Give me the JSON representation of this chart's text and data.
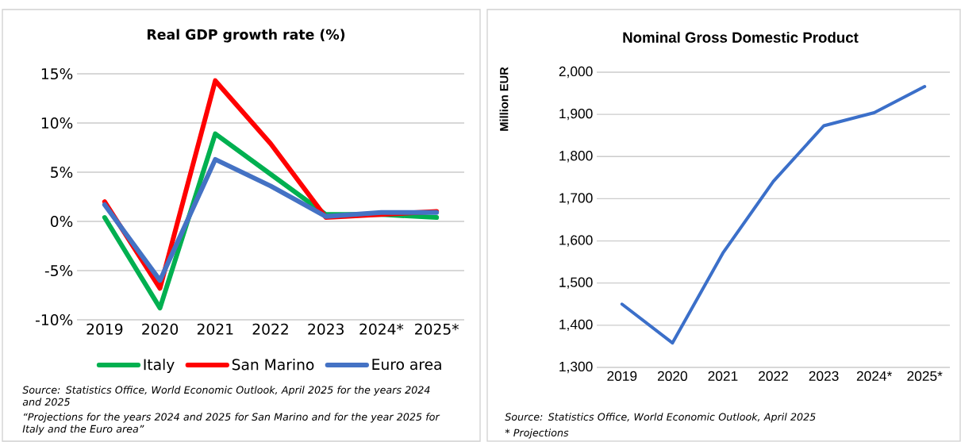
{
  "chart_data": [
    {
      "type": "line",
      "title": "Real GDP growth rate (%)",
      "categories": [
        "2019",
        "2020",
        "2021",
        "2022",
        "2023",
        "2024*",
        "2025*"
      ],
      "series": [
        {
          "name": "Italy",
          "color": "#00b050",
          "values": [
            0.4,
            -8.8,
            8.9,
            4.8,
            0.7,
            0.7,
            0.4
          ]
        },
        {
          "name": "San Marino",
          "color": "#ff0000",
          "values": [
            2.0,
            -6.8,
            14.3,
            7.9,
            0.4,
            0.7,
            1.0
          ]
        },
        {
          "name": "Euro area",
          "color": "#4472c4",
          "values": [
            1.7,
            -6.0,
            6.3,
            3.6,
            0.5,
            0.9,
            0.9
          ]
        }
      ],
      "ylim": [
        -10,
        15
      ],
      "yticks": [
        {
          "value": -10,
          "label": "-10%"
        },
        {
          "value": -5,
          "label": "-5%"
        },
        {
          "value": 0,
          "label": "0%"
        },
        {
          "value": 5,
          "label": "5%"
        },
        {
          "value": 10,
          "label": "10%"
        },
        {
          "value": 15,
          "label": "15%"
        }
      ],
      "grid": "y",
      "legend": "bottom",
      "annotations": [
        "Source: Statistics Office, World Economic Outlook, April 2025 for the years 2024 and 2025",
        "“Projections for the years 2024 and 2025 for San Marino and for the year 2025 for Italy and the Euro area”"
      ]
    },
    {
      "type": "line",
      "title": "Nominal Gross Domestic Product",
      "ylabel": "Million EUR",
      "categories": [
        "2019",
        "2020",
        "2021",
        "2022",
        "2023",
        "2024*",
        "2025*"
      ],
      "values": [
        1450,
        1358,
        1571,
        1741,
        1873,
        1904,
        1966
      ],
      "color": "#3b6fc9",
      "ylim": [
        1300,
        2000
      ],
      "yticks": [
        {
          "value": 1300,
          "label": "1,300"
        },
        {
          "value": 1400,
          "label": "1,400"
        },
        {
          "value": 1500,
          "label": "1,500"
        },
        {
          "value": 1600,
          "label": "1,600"
        },
        {
          "value": 1700,
          "label": "1,700"
        },
        {
          "value": 1800,
          "label": "1,800"
        },
        {
          "value": 1900,
          "label": "1,900"
        },
        {
          "value": 2000,
          "label": "2,000"
        }
      ],
      "grid": "y",
      "annotations": [
        "Source: Statistics Office, World Economic Outlook, April 2025",
        "* Projections"
      ]
    }
  ]
}
